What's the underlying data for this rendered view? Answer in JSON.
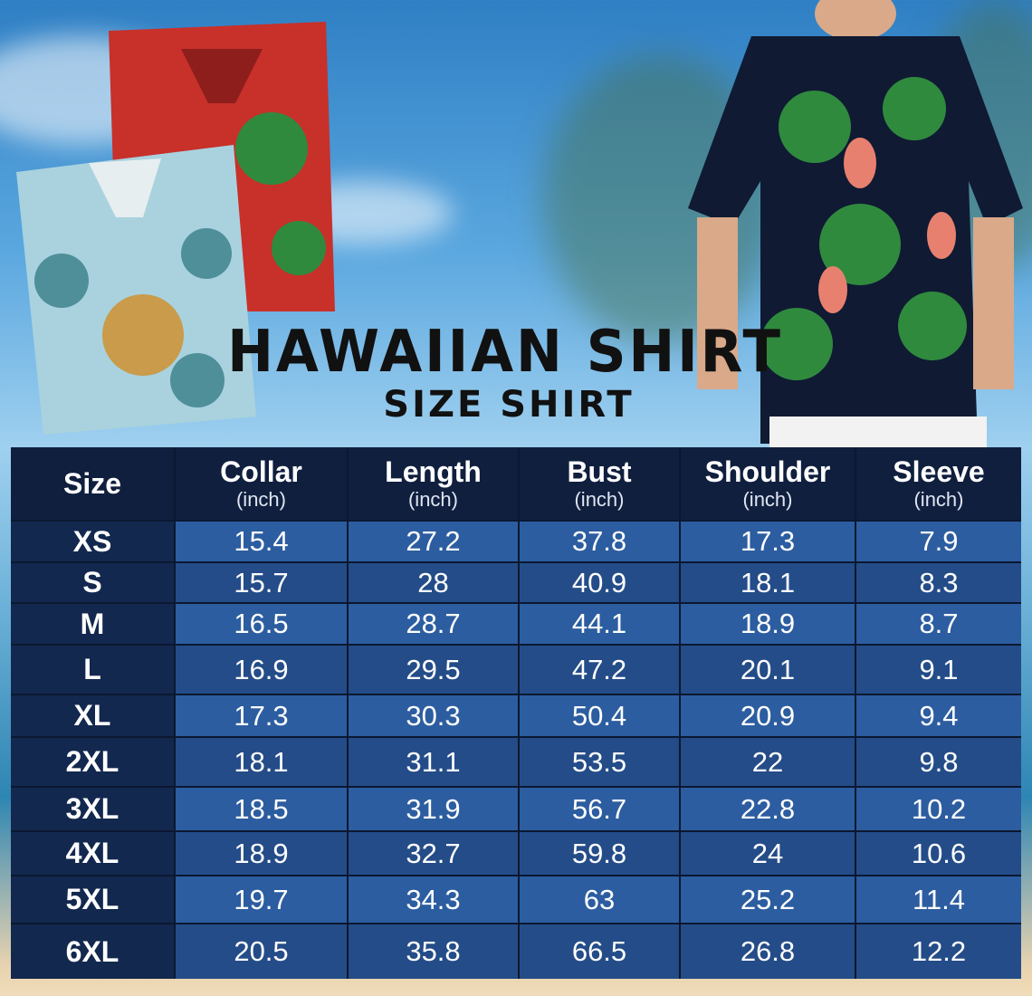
{
  "title": "HAWAIIAN SHIRT",
  "subtitle": "SIZE SHIRT",
  "colors": {
    "header": "#101f3e",
    "size_column": "#13284f",
    "row_light": "#2c5da0",
    "row_dark": "#244c88"
  },
  "chart_data": {
    "type": "table",
    "columns": [
      {
        "label": "Size",
        "unit": ""
      },
      {
        "label": "Collar",
        "unit": "(inch)"
      },
      {
        "label": "Length",
        "unit": "(inch)"
      },
      {
        "label": "Bust",
        "unit": "(inch)"
      },
      {
        "label": "Shoulder",
        "unit": "(inch)"
      },
      {
        "label": "Sleeve",
        "unit": "(inch)"
      }
    ],
    "rows": [
      [
        "XS",
        "15.4",
        "27.2",
        "37.8",
        "17.3",
        "7.9"
      ],
      [
        "S",
        "15.7",
        "28",
        "40.9",
        "18.1",
        "8.3"
      ],
      [
        "M",
        "16.5",
        "28.7",
        "44.1",
        "18.9",
        "8.7"
      ],
      [
        "L",
        "16.9",
        "29.5",
        "47.2",
        "20.1",
        "9.1"
      ],
      [
        "XL",
        "17.3",
        "30.3",
        "50.4",
        "20.9",
        "9.4"
      ],
      [
        "2XL",
        "18.1",
        "31.1",
        "53.5",
        "22",
        "9.8"
      ],
      [
        "3XL",
        "18.5",
        "31.9",
        "56.7",
        "22.8",
        "10.2"
      ],
      [
        "4XL",
        "18.9",
        "32.7",
        "59.8",
        "24",
        "10.6"
      ],
      [
        "5XL",
        "19.7",
        "34.3",
        "63",
        "25.2",
        "11.4"
      ],
      [
        "6XL",
        "20.5",
        "35.8",
        "66.5",
        "26.8",
        "12.2"
      ]
    ]
  }
}
